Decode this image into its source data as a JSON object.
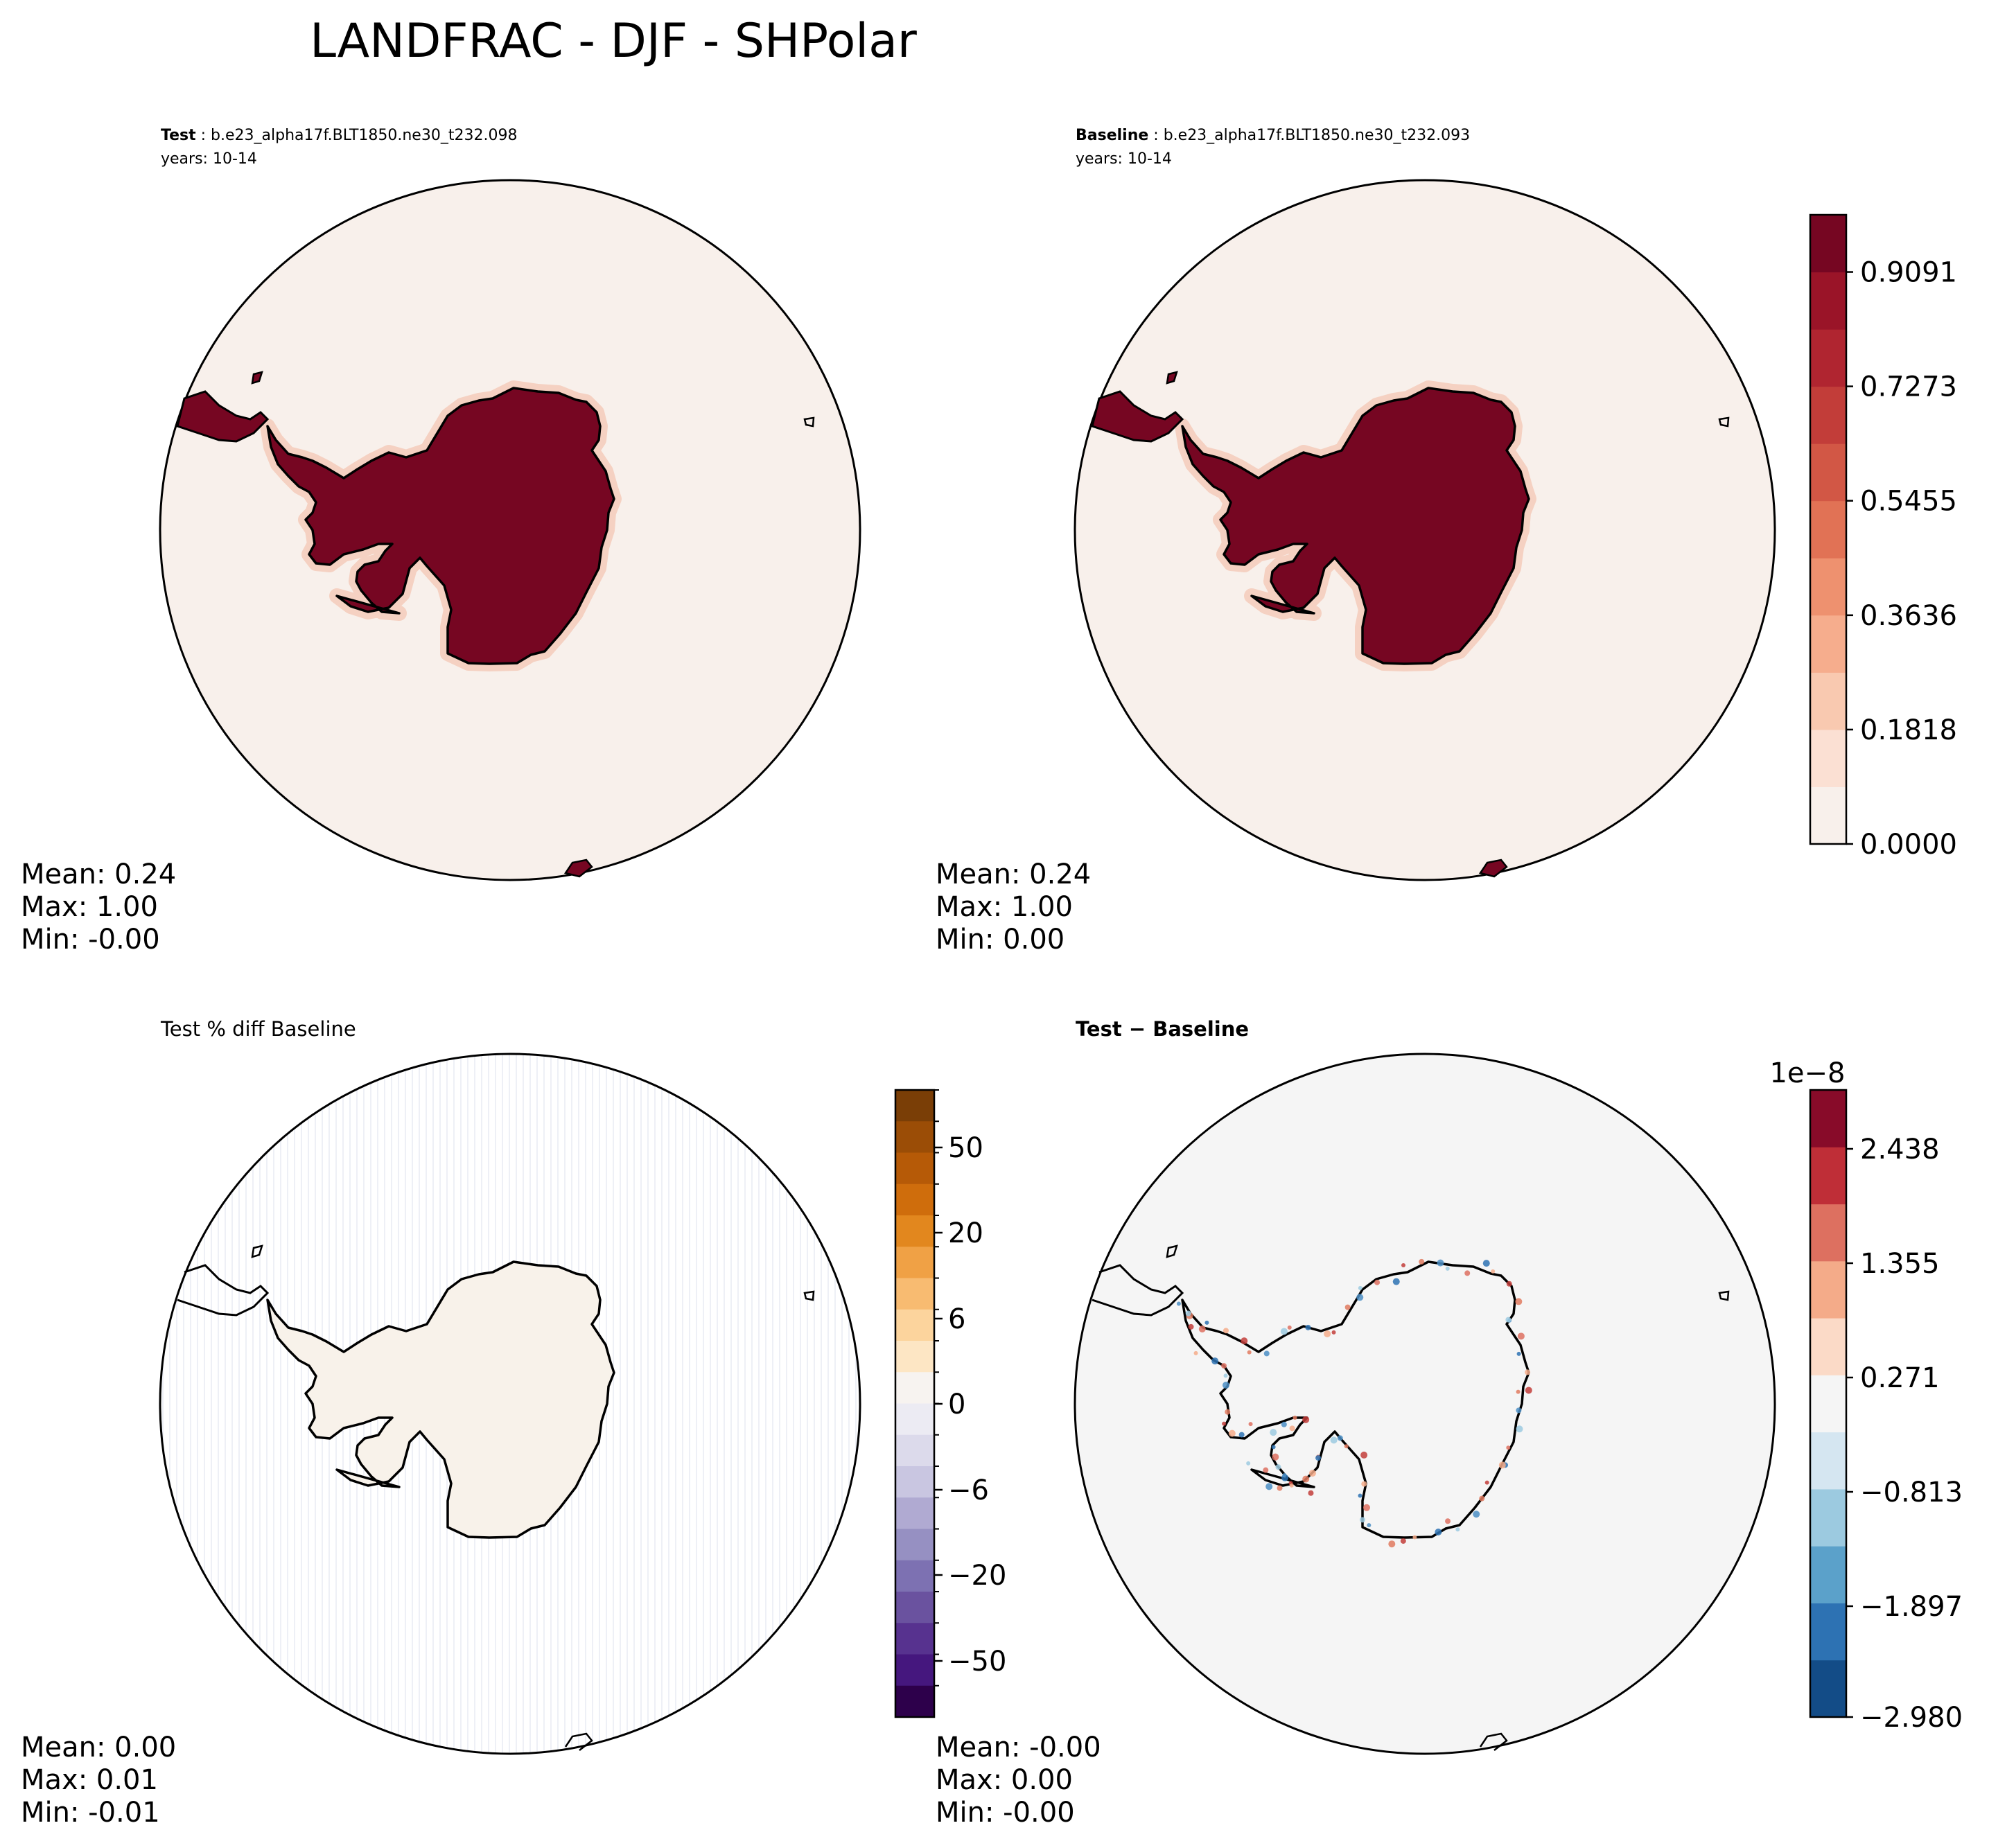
{
  "figure": {
    "title": "LANDFRAC - DJF - SHPolar"
  },
  "panels": {
    "test": {
      "title_bold": "Test",
      "title_rest": " : b.e23_alpha17f.BLT1850.ne30_t232.098",
      "years": "years: 10-14",
      "stats": {
        "mean": "Mean:  0.24",
        "max": "Max:  1.00",
        "min": "Min: -0.00"
      }
    },
    "baseline": {
      "title_bold": "Baseline",
      "title_rest": " : b.e23_alpha17f.BLT1850.ne30_t232.093",
      "years": "years: 10-14",
      "stats": {
        "mean": "Mean:  0.24",
        "max": "Max:  1.00",
        "min": "Min:  0.00"
      }
    },
    "pctdiff": {
      "title": "Test % diff Baseline",
      "stats": {
        "mean": "Mean:  0.00",
        "max": "Max:  0.01",
        "min": "Min: -0.01"
      }
    },
    "diff": {
      "title": "Test − Baseline",
      "stats": {
        "mean": "Mean: -0.00",
        "max": "Max:  0.00",
        "min": "Min: -0.00"
      }
    }
  },
  "colorbars": {
    "main": {
      "ticks": [
        "0.0000",
        "0.1818",
        "0.3636",
        "0.5455",
        "0.7273",
        "0.9091"
      ],
      "colors": [
        "#f8f0eb",
        "#fbe0d3",
        "#f9c9b0",
        "#f6ad8d",
        "#ee916f",
        "#e17255",
        "#d25745",
        "#c23d39",
        "#b02530",
        "#9a1428",
        "#760622"
      ]
    },
    "pct": {
      "ticks": [
        "50",
        "20",
        "6",
        "0",
        "−6",
        "−20",
        "−50"
      ],
      "colors": [
        "#7a3e06",
        "#9b4d06",
        "#b65a07",
        "#cf6d0c",
        "#e2871e",
        "#f0a145",
        "#f8bb71",
        "#fcd49d",
        "#fde6c4",
        "#f7f3f0",
        "#ecebf3",
        "#dcdaeb",
        "#c9c6e1",
        "#b0aad2",
        "#9690c2",
        "#7d71b2",
        "#6a529f",
        "#57328f",
        "#45177e",
        "#2d004b"
      ]
    },
    "diff": {
      "exponent": "1e−8",
      "ticks": [
        "2.438",
        "1.355",
        "0.271",
        "−0.813",
        "−1.897",
        "−2.980"
      ],
      "colors": [
        "#134c87",
        "#2d72b3",
        "#5ba1ca",
        "#9ccae0",
        "#d5e6f1",
        "#f5f5f5",
        "#fbdac7",
        "#f4ab89",
        "#dd7060",
        "#bf2e37",
        "#880b29"
      ]
    }
  },
  "chart_data": [
    {
      "type": "heatmap",
      "title": "Test : b.e23_alpha17f.BLT1850.ne30_t232.098",
      "subtitle": "years: 10-14",
      "variable": "LANDFRAC",
      "season": "DJF",
      "region": "SHPolar",
      "value_range": [
        0.0,
        1.0
      ],
      "mean": 0.24,
      "max": 1.0,
      "min": -0.0
    },
    {
      "type": "heatmap",
      "title": "Baseline : b.e23_alpha17f.BLT1850.ne30_t232.093",
      "subtitle": "years: 10-14",
      "variable": "LANDFRAC",
      "season": "DJF",
      "region": "SHPolar",
      "value_range": [
        0.0,
        1.0
      ],
      "mean": 0.24,
      "max": 1.0,
      "min": 0.0
    },
    {
      "type": "heatmap",
      "title": "Test % diff Baseline",
      "colorbar_ticks": [
        50,
        20,
        6,
        0,
        -6,
        -20,
        -50
      ],
      "mean": 0.0,
      "max": 0.01,
      "min": -0.01
    },
    {
      "type": "heatmap",
      "title": "Test − Baseline",
      "colorbar_scale": "1e-8",
      "colorbar_ticks": [
        2.438,
        1.355,
        0.271,
        -0.813,
        -1.897,
        -2.98
      ],
      "mean": -0.0,
      "max": 0.0,
      "min": -0.0
    }
  ]
}
